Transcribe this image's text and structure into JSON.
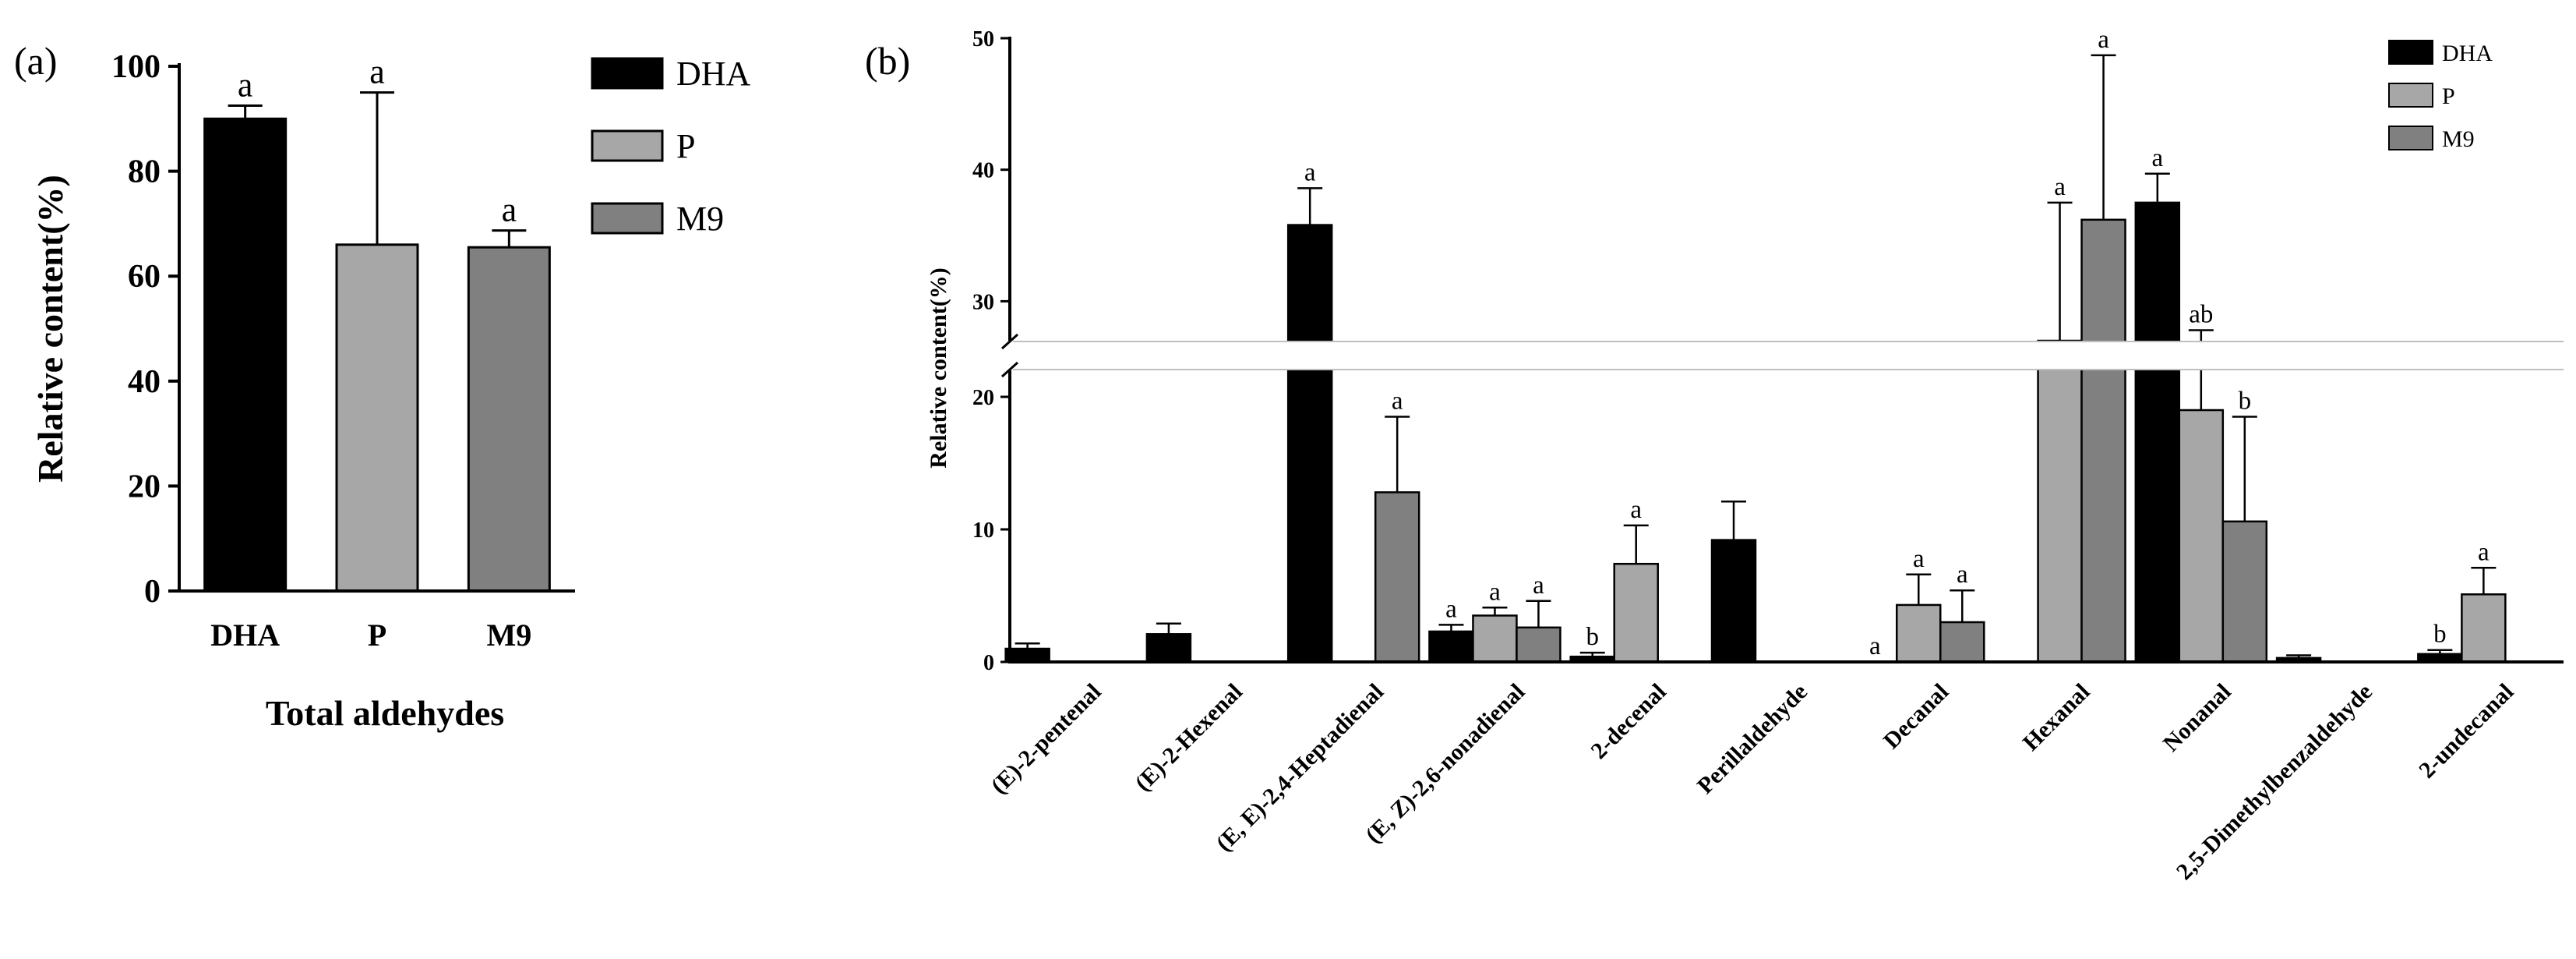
{
  "chart_data": [
    {
      "panel": "(a)",
      "type": "bar",
      "xlabel": "Total aldehydes",
      "ylabel": "Relative content(%)",
      "ylim": [
        0,
        100
      ],
      "yticks": [
        "0",
        "20",
        "40",
        "60",
        "80",
        "100"
      ],
      "categories": [
        "DHA",
        "P",
        "M9"
      ],
      "values": [
        90,
        66,
        65.5
      ],
      "errors": [
        2.5,
        29,
        3.2
      ],
      "letters": [
        "a",
        "a",
        "a"
      ],
      "colors": [
        "#000000",
        "#a7a7a7",
        "#808080"
      ],
      "legend": [
        "DHA",
        "P",
        "M9"
      ]
    },
    {
      "panel": "(b)",
      "type": "bar",
      "ylabel": "Relative content(%)",
      "ylim": [
        0,
        50
      ],
      "axis_break": [
        22,
        27
      ],
      "yticks": [
        "0",
        "10",
        "20",
        "30",
        "40",
        "50"
      ],
      "categories": [
        "(E)-2-pentenal",
        "(E)-2-Hexenal",
        "(E, E)-2,4-Heptadienal",
        "(E, Z)-2,6-nonadienal",
        "2-decenal",
        "Perillaldehyde",
        "Decanal",
        "Hexanal",
        "Nonanal",
        "2,5-Dimethylbenzaldehyde",
        "2-undecanal"
      ],
      "legend": [
        "DHA",
        "P",
        "M9"
      ],
      "colors": [
        "#000000",
        "#a7a7a7",
        "#808080"
      ],
      "series": [
        {
          "name": "DHA",
          "values": [
            1.0,
            2.1,
            35.8,
            2.3,
            0.4,
            9.2,
            0,
            0,
            37.5,
            0.3,
            0.6
          ],
          "errors": [
            0.4,
            0.8,
            2.8,
            0.5,
            0.3,
            2.9,
            0,
            0,
            2.2,
            0.2,
            0.3
          ],
          "letters": [
            "",
            "",
            "a",
            "a",
            "b",
            "",
            "a",
            "",
            "a",
            "",
            "b"
          ]
        },
        {
          "name": "P",
          "values": [
            0,
            0,
            0,
            3.5,
            7.4,
            0,
            4.3,
            27.0,
            19.0,
            0,
            5.1
          ],
          "errors": [
            0,
            0,
            0,
            0.6,
            2.9,
            0,
            2.3,
            10.5,
            8.8,
            0,
            2.0
          ],
          "letters": [
            "",
            "",
            "",
            "a",
            "a",
            "",
            "a",
            "a",
            "ab",
            "",
            "a"
          ],
          "letters_note": ""
        },
        {
          "name": "M9",
          "values": [
            0,
            0,
            12.8,
            2.6,
            0,
            0,
            3.0,
            36.2,
            10.6,
            0,
            0
          ],
          "errors": [
            0,
            0,
            5.7,
            2.0,
            0,
            0,
            2.4,
            12.5,
            7.9,
            0,
            0
          ],
          "letters": [
            "",
            "",
            "a",
            "a",
            "",
            "",
            "a",
            "a",
            "b",
            "",
            ""
          ]
        }
      ]
    }
  ]
}
